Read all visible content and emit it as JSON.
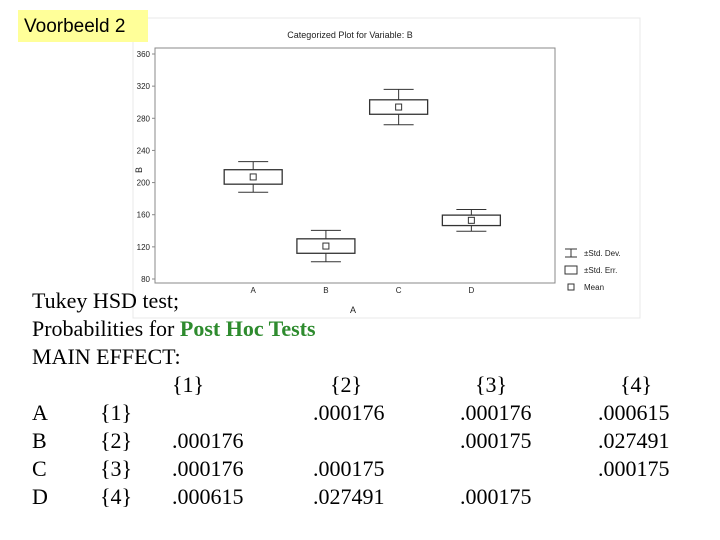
{
  "slide_label": "Voorbeeld 2",
  "chart_data": {
    "type": "boxplot",
    "title": "Categorized Plot for Variable: B",
    "x_label": "A",
    "y_label": "B",
    "categories": [
      "A",
      "B",
      "C",
      "D"
    ],
    "series": [
      {
        "name": "Mean",
        "color": "#333333",
        "values": [
          207,
          121,
          294,
          153
        ]
      },
      {
        "name": "±Std. Err.",
        "color": "#333333",
        "values": [
          9,
          9,
          9,
          6.5
        ]
      },
      {
        "name": "±Std. Dev.",
        "color": "#333333",
        "values": [
          19,
          19.5,
          22,
          13.5
        ]
      }
    ],
    "ylim": [
      80,
      360
    ],
    "yticks": [
      80,
      120,
      160,
      200,
      240,
      280,
      320,
      360
    ],
    "grid": false
  },
  "text": {
    "line1": "Tukey HSD test;",
    "line2_plain": "Probabilities for ",
    "line2_highlight": "Post Hoc Tests",
    "line3": "MAIN EFFECT:"
  },
  "table": {
    "header": [
      "{1}",
      "{2}",
      "{3}",
      "{4}"
    ],
    "rows": [
      [
        "A",
        "{1}",
        null,
        ".000176",
        ".000176",
        ".000615"
      ],
      [
        "B",
        "{2}",
        ".000176",
        null,
        ".000175",
        ".027491"
      ],
      [
        "C",
        "{3}",
        ".000176",
        ".000175",
        null,
        ".000175"
      ],
      [
        "D",
        "{4}",
        ".000615",
        ".027491",
        ".000175",
        null
      ]
    ]
  }
}
